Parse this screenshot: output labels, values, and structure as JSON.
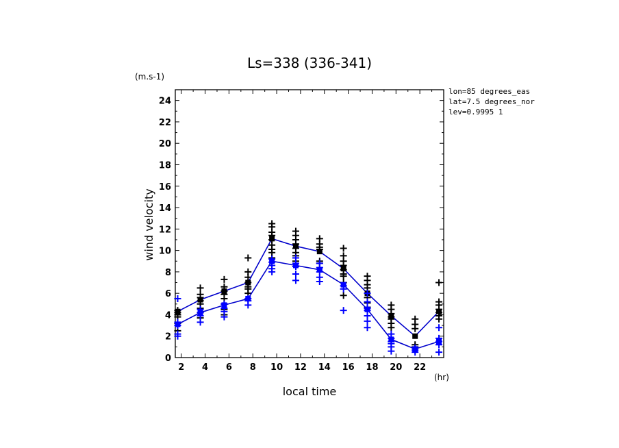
{
  "chart_data": {
    "type": "line",
    "title": "Ls=338 (336-341)",
    "ylabel": "wind velocity",
    "yunit": "(m.s-1)",
    "xlabel": "local time",
    "xunit": "(hr)",
    "xlim": [
      1.5,
      24
    ],
    "ylim": [
      0,
      25
    ],
    "xticks": [
      "2",
      "4",
      "6",
      "8",
      "10",
      "12",
      "14",
      "16",
      "18",
      "20",
      "22"
    ],
    "yticks": [
      "0",
      "2",
      "4",
      "6",
      "8",
      "10",
      "12",
      "14",
      "16",
      "18",
      "20",
      "22",
      "24"
    ],
    "info": [
      "lon=85 degrees_eas",
      "lat=7.5 degrees_nor",
      "lev=0.9995 1"
    ],
    "colors": {
      "upper": "#000000",
      "lower": "#0000ff",
      "line": "#0000cc"
    },
    "series": [
      {
        "role": "upper",
        "x": [
          1.7,
          3.6,
          5.6,
          7.6,
          9.6,
          11.6,
          13.6,
          15.6,
          17.6,
          19.6,
          21.6,
          23.6
        ],
        "mean": [
          4.3,
          5.4,
          6.2,
          7.0,
          11.1,
          10.4,
          9.9,
          8.3,
          6.0,
          3.9,
          2.0,
          4.3
        ],
        "points": [
          [
            4.4,
            4.2,
            4.0,
            3.8,
            3.2,
            2.5
          ],
          [
            6.5,
            5.9,
            5.6,
            5.3,
            5.0,
            4.6,
            4.2,
            3.7
          ],
          [
            7.3,
            6.6,
            6.2,
            5.9,
            5.5,
            5.0,
            4.5,
            4.0
          ],
          [
            9.3,
            8.0,
            7.5,
            7.0,
            6.6,
            6.4,
            6.0
          ],
          [
            12.5,
            12.2,
            11.7,
            11.4,
            11.0,
            10.5,
            10.1,
            9.8,
            9.3
          ],
          [
            11.8,
            11.4,
            11.0,
            10.6,
            10.2,
            9.8,
            9.5,
            9.0
          ],
          [
            11.1,
            10.6,
            10.3,
            10.1,
            9.0,
            8.8
          ],
          [
            10.2,
            9.5,
            9.0,
            8.6,
            8.2,
            7.8,
            7.6,
            7.0,
            5.8
          ],
          [
            7.6,
            7.2,
            6.8,
            6.5,
            6.0,
            5.6,
            5.1,
            4.7
          ],
          [
            4.9,
            4.5,
            4.1,
            3.8,
            3.6,
            3.2,
            2.8
          ],
          [
            3.6,
            3.1,
            2.7,
            1.2,
            1.0
          ],
          [
            7.0,
            5.2,
            4.9,
            4.5,
            4.2,
            3.9,
            3.6
          ]
        ]
      },
      {
        "role": "lower",
        "x": [
          1.7,
          3.6,
          5.6,
          7.6,
          9.6,
          11.6,
          13.6,
          15.6,
          17.6,
          19.6,
          21.6,
          23.6
        ],
        "mean": [
          3.1,
          4.2,
          4.9,
          5.5,
          9.0,
          8.6,
          8.2,
          6.8,
          4.5,
          1.7,
          0.8,
          1.5
        ],
        "points": [
          [
            5.5,
            3.3,
            3.0,
            2.2,
            2.0
          ],
          [
            4.5,
            4.2,
            3.9,
            3.3
          ],
          [
            5.0,
            4.6,
            4.3,
            3.8
          ],
          [
            5.5,
            5.3,
            4.9
          ],
          [
            9.2,
            8.9,
            8.6,
            8.3,
            8.0
          ],
          [
            9.3,
            8.8,
            8.5,
            7.8,
            7.2
          ],
          [
            8.8,
            8.4,
            8.0,
            7.5,
            7.1
          ],
          [
            6.7,
            6.4,
            4.4
          ],
          [
            6.0,
            5.2,
            4.6,
            4.4,
            3.9,
            3.4,
            2.8
          ],
          [
            2.2,
            1.8,
            1.5,
            1.3,
            1.0,
            0.6
          ],
          [
            0.9,
            0.7,
            0.5
          ],
          [
            2.8,
            1.8,
            1.5,
            1.2,
            0.5
          ]
        ]
      }
    ]
  }
}
